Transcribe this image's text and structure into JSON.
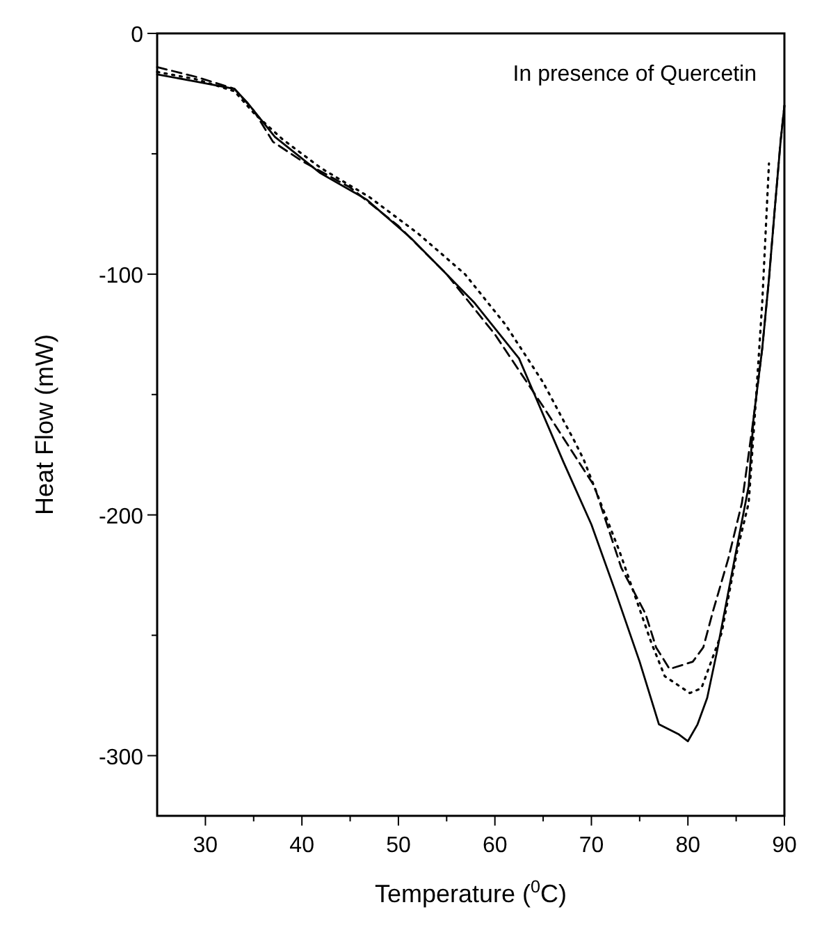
{
  "chart_data": {
    "type": "line",
    "xlabel": "Temperature ($^{0}$C)",
    "ylabel": "Heat Flow (mW)",
    "annotations": [
      "In presence of Quercetin"
    ],
    "xlim": [
      25,
      90
    ],
    "ylim": [
      -325,
      0
    ],
    "xticks": [
      30,
      {
        "value": 35,
        "label": null
      },
      40,
      {
        "value": 45,
        "label": null
      },
      50,
      {
        "value": 55,
        "label": null
      },
      60,
      {
        "value": 65,
        "label": null
      },
      70,
      {
        "value": 75,
        "label": null
      },
      80,
      {
        "value": 85,
        "label": null
      },
      90
    ],
    "yticks": [
      {
        "value": -300,
        "label": "-300"
      },
      {
        "value": -250,
        "label": null
      },
      {
        "value": -200,
        "label": "-200"
      },
      {
        "value": -150,
        "label": null
      },
      {
        "value": -100,
        "label": "-100"
      },
      {
        "value": -50,
        "label": null
      },
      0
    ],
    "grid": false,
    "series": [
      {
        "color": "#000000",
        "line_style": "solid",
        "x": [
          25,
          29,
          33,
          34.4,
          37.2,
          41.9,
          46.7,
          51.3,
          54.5,
          57.9,
          62.5,
          67.1,
          70,
          72.5,
          75,
          77,
          79,
          80,
          81,
          82,
          83,
          84,
          85,
          86.3,
          86.8,
          87.7,
          88.4,
          89,
          89.6,
          90
        ],
        "values": [
          -17,
          -20,
          -23,
          -29,
          -43,
          -58,
          -69,
          -85,
          -98,
          -112,
          -135,
          -178,
          -204,
          -232,
          -261,
          -287,
          -291,
          -294,
          -287,
          -276,
          -257,
          -236,
          -215,
          -188,
          -160,
          -131,
          -102,
          -73,
          -45,
          -30
        ]
      },
      {
        "color": "#000000",
        "line_style": "dashed",
        "x": [
          25,
          29,
          33,
          35,
          37,
          40,
          45,
          50,
          55,
          60,
          65,
          70.3,
          73.1,
          75.6,
          76.7,
          78.1,
          80.5,
          81.6,
          82.6,
          84.2,
          85.6,
          86.8,
          87.7,
          88.4,
          89,
          89.6,
          90
        ],
        "values": [
          -14,
          -18,
          -23,
          -32,
          -45,
          -53,
          -64,
          -80,
          -100,
          -125,
          -155,
          -188,
          -222,
          -241,
          -255,
          -264,
          -261,
          -255,
          -240,
          -218,
          -195,
          -160,
          -131,
          -102,
          -73,
          -45,
          -30
        ]
      },
      {
        "color": "#000000",
        "line_style": "dotted",
        "x": [
          25,
          29,
          33,
          35,
          38,
          42,
          47,
          52,
          56.9,
          61.1,
          65,
          68.2,
          69.2,
          72.9,
          76.2,
          77.6,
          80.2,
          81.4,
          83.5,
          85.1,
          86.3,
          87,
          87.7,
          88.4
        ],
        "values": [
          -16,
          -19,
          -24,
          -33,
          -44,
          -56,
          -68,
          -83,
          -100,
          -121,
          -145,
          -169,
          -177,
          -215,
          -253,
          -267,
          -274,
          -272,
          -249,
          -215,
          -195,
          -155,
          -112,
          -54
        ]
      }
    ]
  }
}
